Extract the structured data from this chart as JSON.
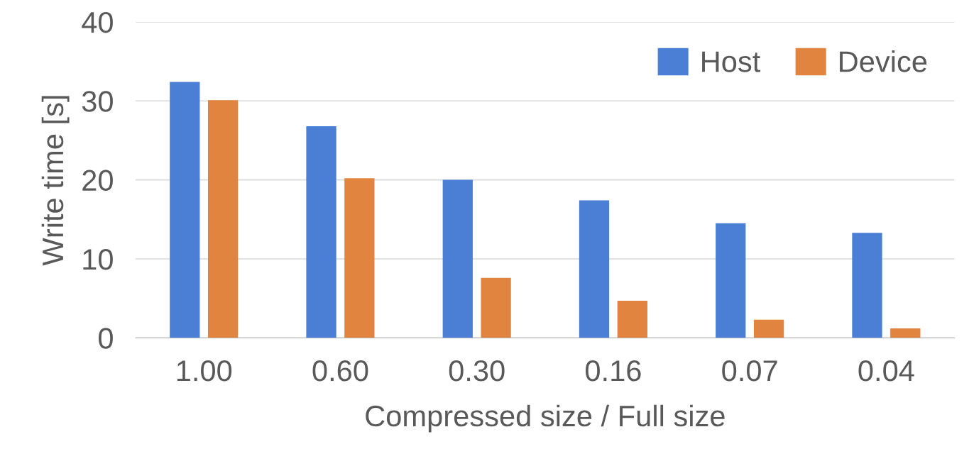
{
  "chart_data": {
    "type": "bar",
    "xlabel": "Compressed size / Full size",
    "ylabel": "Write time [s]",
    "categories": [
      "1.00",
      "0.60",
      "0.30",
      "0.16",
      "0.07",
      "0.04"
    ],
    "series": [
      {
        "name": "Host",
        "color": "#4a7fd5",
        "values": [
          32.4,
          26.8,
          20.0,
          17.4,
          14.5,
          13.3
        ]
      },
      {
        "name": "Device",
        "color": "#e0843f",
        "values": [
          30.1,
          20.2,
          7.6,
          4.7,
          2.3,
          1.2
        ]
      }
    ],
    "ylim": [
      0,
      40
    ],
    "yticks": [
      0,
      10,
      20,
      30,
      40
    ],
    "grid": "y",
    "legend": "top right"
  }
}
